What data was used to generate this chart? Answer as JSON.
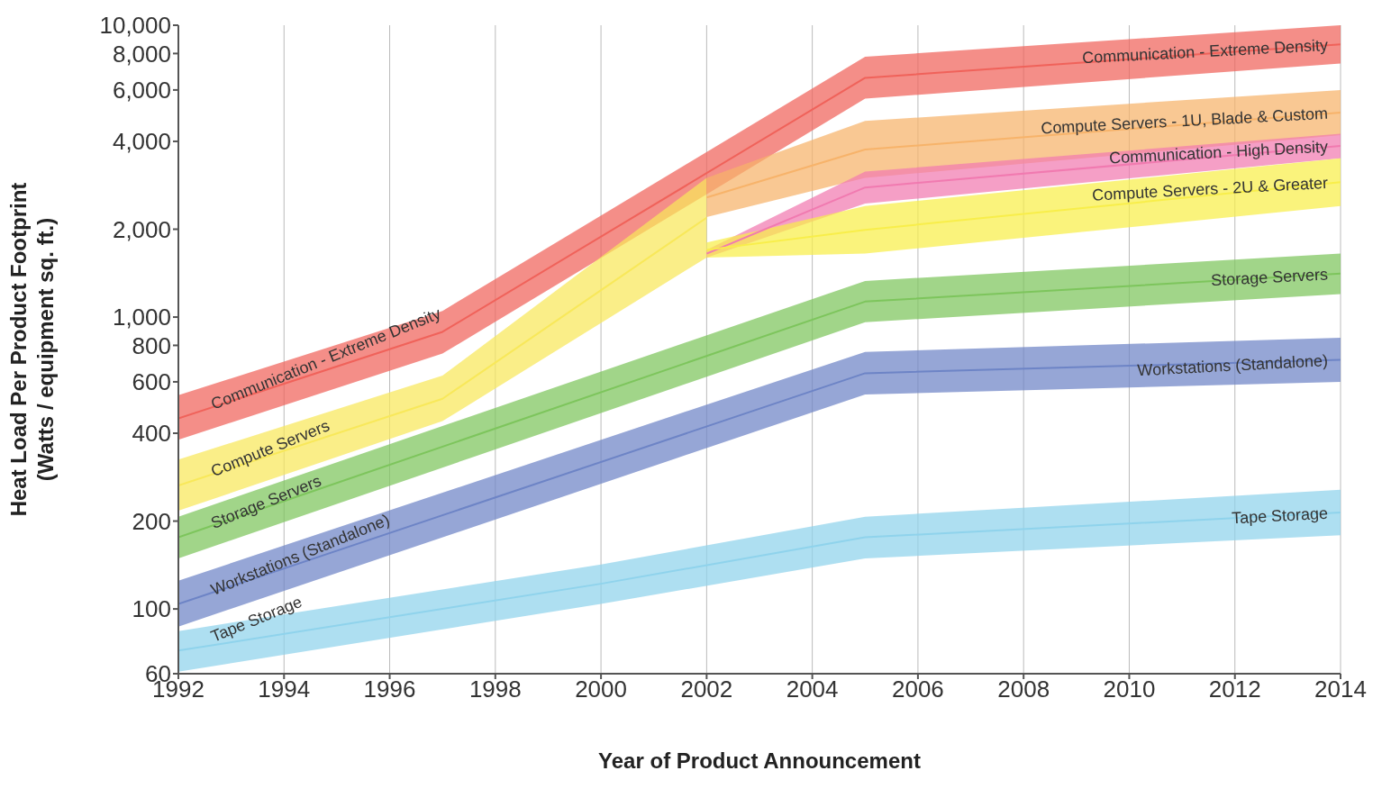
{
  "chart_data": {
    "type": "line",
    "marker": "none",
    "xlabel": "Year of Product Announcement",
    "ylabel": "Heat Load Per Product Footprint\n(Watts / equipment sq. ft.)",
    "log": "y",
    "grid": true,
    "legend": false,
    "xlim": [
      1992,
      2014
    ],
    "xticks": [
      1992,
      1994,
      1996,
      1998,
      2000,
      2002,
      2004,
      2006,
      2008,
      2010,
      2012,
      2014
    ],
    "ylim": [
      60,
      10000
    ],
    "yticks": [
      60,
      100,
      200,
      400,
      600,
      800,
      {
        "value": 1000,
        "label": "1,000"
      },
      {
        "value": 2000,
        "label": "2,000"
      },
      {
        "value": 4000,
        "label": "4,000"
      },
      {
        "value": 6000,
        "label": "6,000"
      },
      {
        "value": 8000,
        "label": "8,000"
      },
      {
        "value": 10000,
        "label": "10,000"
      }
    ],
    "series": [
      {
        "name": "Communication - Extreme Density",
        "color": "#f0625a",
        "x": [
          1992,
          1997,
          2005,
          2014
        ],
        "values": [
          450,
          890,
          6600,
          8600
        ],
        "lower": [
          380,
          750,
          5600,
          7400
        ],
        "upper": [
          540,
          1050,
          7800,
          10000
        ]
      },
      {
        "name": "Compute Servers",
        "color": "#f8e85a",
        "x": [
          1992,
          1997,
          2002
        ],
        "values": [
          265,
          525,
          2190
        ],
        "lower": [
          217,
          440,
          1600
        ],
        "upper": [
          325,
          630,
          3000
        ]
      },
      {
        "name": "Compute Servers - 1U, Blade & Custom",
        "color": "#f7b36a",
        "x": [
          2002,
          2005,
          2014
        ],
        "values": [
          2570,
          3750,
          5020
        ],
        "lower": [
          2200,
          3000,
          4200
        ],
        "upper": [
          3000,
          4700,
          6000
        ]
      },
      {
        "name": "Communication - High Density",
        "color": "#f17ab0",
        "x": [
          2002,
          2005,
          2014
        ],
        "values": [
          1650,
          2780,
          3860
        ],
        "lower": [
          1600,
          2450,
          3500
        ],
        "upper": [
          1700,
          3150,
          4250
        ]
      },
      {
        "name": "Compute Servers - 2U & Greater",
        "color": "#f8ee4a",
        "x": [
          2002,
          2005,
          2014
        ],
        "values": [
          1700,
          1990,
          2900
        ],
        "lower": [
          1600,
          1650,
          2400
        ],
        "upper": [
          1800,
          2400,
          3500
        ]
      },
      {
        "name": "Storage Servers",
        "color": "#7dc55c",
        "x": [
          1992,
          2005,
          2014
        ],
        "values": [
          176,
          1130,
          1410
        ],
        "lower": [
          149,
          960,
          1200
        ],
        "upper": [
          207,
          1330,
          1650
        ]
      },
      {
        "name": "Workstations (Standalone)",
        "color": "#6d84c6",
        "x": [
          1992,
          2005,
          2014
        ],
        "values": [
          104,
          642,
          714
        ],
        "lower": [
          87,
          543,
          600
        ],
        "upper": [
          125,
          760,
          850
        ]
      },
      {
        "name": "Tape Storage",
        "color": "#8fd3ec",
        "x": [
          1992,
          2000,
          2005,
          2014
        ],
        "values": [
          72,
          122,
          176,
          214
        ],
        "lower": [
          61,
          104,
          149,
          179
        ],
        "upper": [
          84,
          142,
          207,
          256
        ]
      }
    ]
  }
}
